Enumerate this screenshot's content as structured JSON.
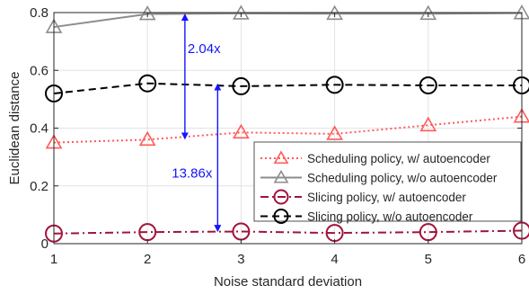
{
  "chart_data": {
    "type": "line",
    "x": [
      1,
      2,
      3,
      4,
      5,
      6
    ],
    "xlabel": "Noise standard deviation",
    "ylabel": "Euclidean distance",
    "xlim": [
      1,
      6
    ],
    "ylim": [
      0,
      0.8
    ],
    "xticks": [
      "1",
      "2",
      "3",
      "4",
      "5",
      "6"
    ],
    "yticks": [
      "0",
      "0.2",
      "0.4",
      "0.6",
      "0.8"
    ],
    "grid": true,
    "legend_position": "bottom-right",
    "series": [
      {
        "name": "Scheduling policy, w/ autoencoder",
        "values": [
          0.35,
          0.36,
          0.385,
          0.38,
          0.41,
          0.44
        ],
        "color": "#ff5a5a",
        "marker": "triangle",
        "line": "dotted"
      },
      {
        "name": "Scheduling policy, w/o autoencoder",
        "values": [
          0.75,
          0.795,
          0.797,
          0.796,
          0.796,
          0.798
        ],
        "color": "#8c8c8c",
        "marker": "triangle",
        "line": "solid"
      },
      {
        "name": "Slicing policy, w/ autoencoder",
        "values": [
          0.035,
          0.04,
          0.042,
          0.037,
          0.04,
          0.045
        ],
        "color": "#a0143c",
        "marker": "circle",
        "line": "dashdot"
      },
      {
        "name": "Slicing policy, w/o autoencoder",
        "values": [
          0.52,
          0.555,
          0.545,
          0.55,
          0.548,
          0.548
        ],
        "color": "#000000",
        "marker": "circle",
        "line": "dashed"
      }
    ],
    "annotations": [
      {
        "text": "2.04x",
        "x": 2.4,
        "y_top": 0.797,
        "y_bottom": 0.36,
        "label_y": 0.675,
        "color": "#1414ff"
      },
      {
        "text": "13.86x",
        "x": 2.75,
        "y_top": 0.555,
        "y_bottom": 0.04,
        "label_y": 0.245,
        "color": "#1414ff"
      }
    ]
  }
}
